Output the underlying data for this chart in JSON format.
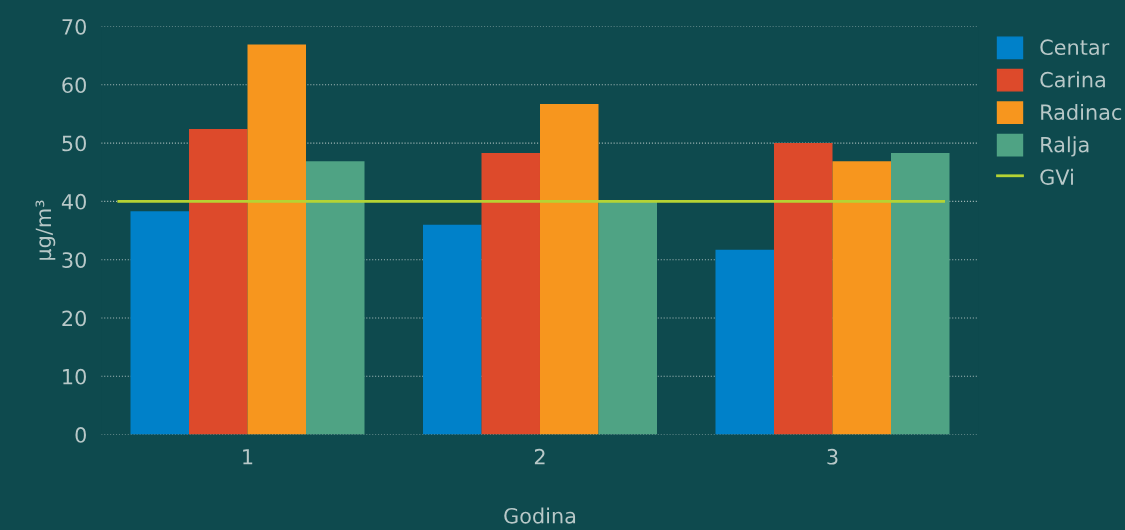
{
  "chart_data": {
    "type": "bar",
    "xlabel": "Godina",
    "ylabel": "µg/m³",
    "categories": [
      "1",
      "2",
      "3"
    ],
    "series": [
      {
        "name": "Centar",
        "color": "#0081c9",
        "values": [
          38.3,
          36.0,
          31.7
        ]
      },
      {
        "name": "Carina",
        "color": "#dd4a2b",
        "values": [
          52.4,
          48.3,
          50.0
        ]
      },
      {
        "name": "Radinac",
        "color": "#f7961e",
        "values": [
          66.9,
          56.7,
          46.9
        ]
      },
      {
        "name": "Ralja",
        "color": "#4fa384",
        "values": [
          46.9,
          40.0,
          48.3
        ]
      }
    ],
    "ref_lines": [
      {
        "axis": "y",
        "value": 40,
        "label": "GVi",
        "color": "#b5d334",
        "line_style": "solid"
      }
    ],
    "ylim": [
      0,
      70
    ],
    "yticks": [
      0,
      10,
      20,
      30,
      40,
      50,
      60,
      70
    ],
    "grid": "y",
    "legend": "top right"
  }
}
